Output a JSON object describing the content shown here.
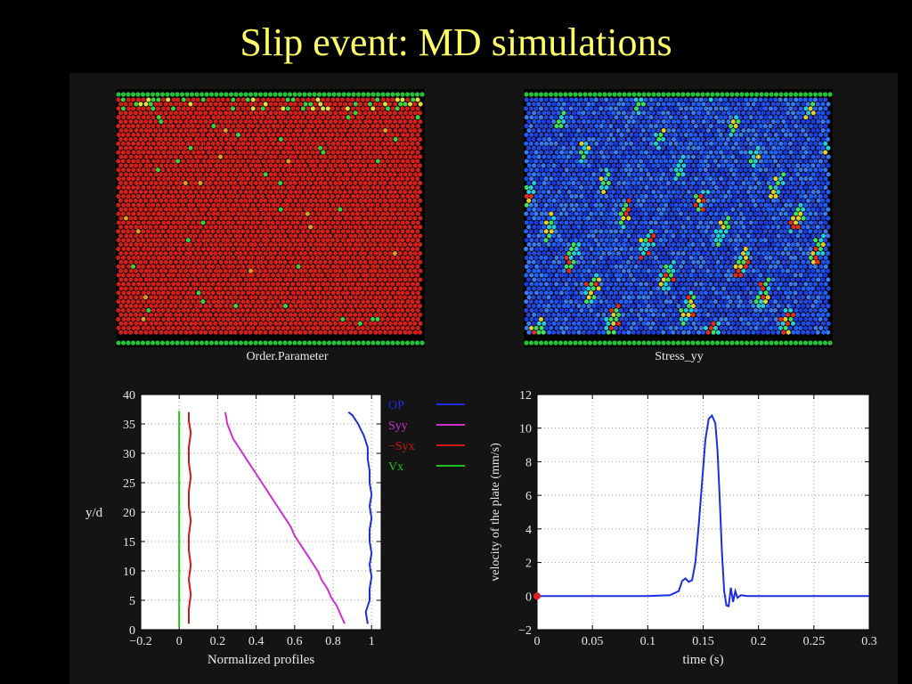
{
  "title": "Slip event: MD simulations",
  "simulations": [
    {
      "caption": "Order.Parameter",
      "base_color": "#d41f1a",
      "wall_color": "#22c43a"
    },
    {
      "caption": "Stress_yy",
      "base_color": "#1f3fe0",
      "wall_color": "#22c43a"
    }
  ],
  "chart_data": [
    {
      "type": "line",
      "xlabel": "Normalized profiles",
      "ylabel": "y/d",
      "xlim": [
        -0.2,
        1.05
      ],
      "ylim": [
        0,
        40
      ],
      "xticks": [
        -0.2,
        0,
        0.2,
        0.4,
        0.6,
        0.8,
        1
      ],
      "xtick_labels": [
        "−0.2",
        "0",
        "0.2",
        "0.4",
        "0.6",
        "0.8",
        "1"
      ],
      "yticks": [
        0,
        5,
        10,
        15,
        20,
        25,
        30,
        35,
        40
      ],
      "ytick_labels": [
        "0",
        "5",
        "10",
        "15",
        "20",
        "25",
        "30",
        "35",
        "40"
      ],
      "grid": true,
      "legend_position": "outside-right",
      "series": [
        {
          "name": "OP",
          "color": "#1a2ee0",
          "x": [
            0.98,
            0.97,
            0.99,
            0.99,
            1.0,
            0.99,
            1.0,
            0.99,
            0.99,
            1.0,
            0.99,
            1.0,
            0.99,
            0.99,
            0.98,
            0.98,
            0.96,
            0.93,
            0.9,
            0.88
          ],
          "y": [
            1,
            3,
            5,
            7,
            9,
            11,
            13,
            15,
            17,
            19,
            21,
            23,
            25,
            27,
            29,
            31,
            33,
            35,
            36.5,
            37
          ]
        },
        {
          "name": "Syy",
          "color": "#d030d0",
          "x": [
            0.86,
            0.84,
            0.82,
            0.79,
            0.77,
            0.74,
            0.72,
            0.69,
            0.66,
            0.63,
            0.6,
            0.58,
            0.55,
            0.52,
            0.49,
            0.46,
            0.43,
            0.4,
            0.37,
            0.34,
            0.31,
            0.28,
            0.25,
            0.24
          ],
          "y": [
            1,
            2.5,
            4,
            5.5,
            7,
            8.5,
            10,
            11.5,
            13,
            14.5,
            16,
            17.5,
            19,
            20.5,
            22,
            23.5,
            25,
            26.5,
            28,
            29.5,
            31,
            32.5,
            35,
            37
          ]
        },
        {
          "name": "−Syx",
          "color": "#d01818",
          "x": [
            0.05,
            0.05,
            0.06,
            0.05,
            0.06,
            0.05,
            0.05,
            0.06,
            0.05,
            0.05,
            0.06,
            0.05,
            0.05,
            0.06,
            0.05,
            0.05
          ],
          "y": [
            1,
            3.5,
            6,
            8.5,
            11,
            13.5,
            16,
            18.5,
            21,
            23.5,
            26,
            28.5,
            31,
            33.5,
            35.5,
            37
          ]
        },
        {
          "name": "Vx",
          "color": "#20c020",
          "x": [
            0.0,
            0.0,
            0.0,
            0.0
          ],
          "y": [
            0.5,
            12,
            25,
            37.2
          ]
        }
      ]
    },
    {
      "type": "line",
      "xlabel": "time (s)",
      "ylabel": "velocity of the plate (mm/s)",
      "xlim": [
        0,
        0.3
      ],
      "ylim": [
        -2,
        12
      ],
      "xticks": [
        0,
        0.05,
        0.1,
        0.15,
        0.2,
        0.25,
        0.3
      ],
      "xtick_labels": [
        "0",
        "0.05",
        "0.1",
        "0.15",
        "0.2",
        "0.25",
        "0.3"
      ],
      "yticks": [
        -2,
        0,
        2,
        4,
        6,
        8,
        10,
        12
      ],
      "ytick_labels": [
        "−2",
        "0",
        "2",
        "4",
        "6",
        "8",
        "10",
        "12"
      ],
      "grid": true,
      "series": [
        {
          "color": "#1a2ee0",
          "x": [
            0,
            0.05,
            0.1,
            0.12,
            0.128,
            0.131,
            0.134,
            0.137,
            0.14,
            0.143,
            0.146,
            0.149,
            0.152,
            0.155,
            0.158,
            0.161,
            0.163,
            0.165,
            0.167,
            0.169,
            0.171,
            0.173,
            0.175,
            0.177,
            0.179,
            0.181,
            0.184,
            0.19,
            0.2,
            0.25,
            0.3
          ],
          "y": [
            0,
            0,
            0,
            0.05,
            0.3,
            0.9,
            1.05,
            0.85,
            0.95,
            2.0,
            4.2,
            6.8,
            9.3,
            10.55,
            10.75,
            10.3,
            8.6,
            5.8,
            2.6,
            0.3,
            -0.55,
            -0.6,
            0.5,
            -0.35,
            0.3,
            -0.1,
            0.05,
            0,
            0,
            0,
            0
          ]
        }
      ],
      "marker": {
        "x": 0,
        "y": 0,
        "color": "#e02020"
      }
    }
  ]
}
